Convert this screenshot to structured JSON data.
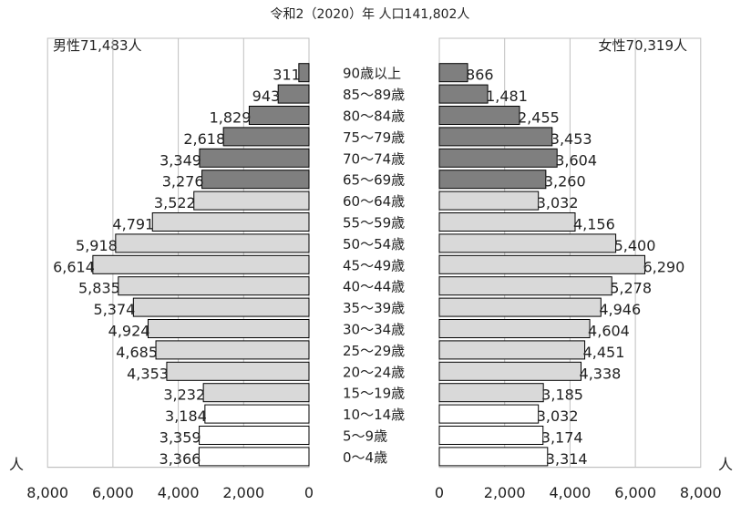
{
  "chart_data": {
    "type": "bar",
    "subtype": "population-pyramid",
    "title": "令和2（2020）年 人口141,802人",
    "unit": "人",
    "categories": [
      "90歳以上",
      "85～89歳",
      "80～84歳",
      "75～79歳",
      "70～74歳",
      "65～69歳",
      "60～64歳",
      "55～59歳",
      "50～54歳",
      "45～49歳",
      "40～44歳",
      "35～39歳",
      "30～34歳",
      "25～29歳",
      "20～24歳",
      "15～19歳",
      "10～14歳",
      "5～9歳",
      "0～4歳"
    ],
    "series": [
      {
        "name": "男性",
        "header": "男性71,483人",
        "values": [
          311,
          943,
          1829,
          2618,
          3349,
          3276,
          3522,
          4791,
          5918,
          6614,
          5835,
          5374,
          4924,
          4685,
          4353,
          3232,
          3184,
          3359,
          3366
        ]
      },
      {
        "name": "女性",
        "header": "女性70,319人",
        "values": [
          866,
          1481,
          2455,
          3453,
          3604,
          3260,
          3032,
          4156,
          5400,
          6290,
          5278,
          4946,
          4604,
          4451,
          4338,
          3185,
          3032,
          3174,
          3314
        ]
      }
    ],
    "xlim": [
      0,
      8000
    ],
    "ticks": [
      0,
      2000,
      4000,
      6000,
      8000
    ],
    "tick_labels": [
      "0",
      "2,000",
      "4,000",
      "6,000",
      "8,000"
    ],
    "grid": true,
    "colors": {
      "elderly": "#7f7f7f",
      "working": "#d9d9d9",
      "youth": "#ffffff",
      "outline": "#000000",
      "grid": "#bfbfbf"
    }
  }
}
